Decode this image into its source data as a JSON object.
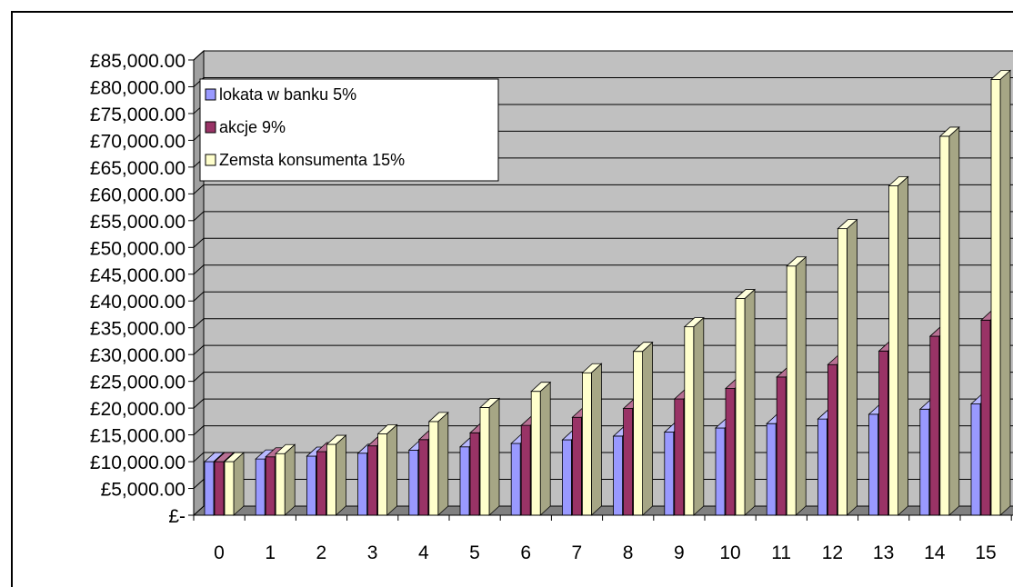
{
  "chart_data": {
    "type": "bar",
    "bar_style": "3d-column",
    "categories": [
      "0",
      "1",
      "2",
      "3",
      "4",
      "5",
      "6",
      "7",
      "8",
      "9",
      "10",
      "11",
      "12",
      "13",
      "14",
      "15"
    ],
    "series": [
      {
        "name": "lokata w banku 5%",
        "color": "#9999FF",
        "values": [
          10000,
          10500,
          11025,
          11576,
          12155,
          12763,
          13401,
          14071,
          14775,
          15513,
          16289,
          17103,
          17959,
          18856,
          19799,
          20789
        ]
      },
      {
        "name": "akcje 9%",
        "color": "#993366",
        "values": [
          10000,
          10900,
          11881,
          12950,
          14116,
          15386,
          16771,
          18280,
          19926,
          21719,
          23674,
          25804,
          28127,
          30658,
          33417,
          36425
        ]
      },
      {
        "name": "Zemsta konsumenta 15%",
        "color": "#FFFFCC",
        "values": [
          10000,
          11500,
          13225,
          15209,
          17490,
          20114,
          23131,
          26600,
          30590,
          35179,
          40456,
          46524,
          53503,
          61528,
          70757,
          81371
        ]
      }
    ],
    "y_ticks": [
      {
        "value": 0,
        "label": "£-"
      },
      {
        "value": 5000,
        "label": "£5,000.00"
      },
      {
        "value": 10000,
        "label": "£10,000.00"
      },
      {
        "value": 15000,
        "label": "£15,000.00"
      },
      {
        "value": 20000,
        "label": "£20,000.00"
      },
      {
        "value": 25000,
        "label": "£25,000.00"
      },
      {
        "value": 30000,
        "label": "£30,000.00"
      },
      {
        "value": 35000,
        "label": "£35,000.00"
      },
      {
        "value": 40000,
        "label": "£40,000.00"
      },
      {
        "value": 45000,
        "label": "£45,000.00"
      },
      {
        "value": 50000,
        "label": "£50,000.00"
      },
      {
        "value": 55000,
        "label": "£55,000.00"
      },
      {
        "value": 60000,
        "label": "£60,000.00"
      },
      {
        "value": 65000,
        "label": "£65,000.00"
      },
      {
        "value": 70000,
        "label": "£70,000.00"
      },
      {
        "value": 75000,
        "label": "£75,000.00"
      },
      {
        "value": 80000,
        "label": "£80,000.00"
      },
      {
        "value": 85000,
        "label": "£85,000.00"
      }
    ],
    "ylim": [
      0,
      85000
    ],
    "grid": true,
    "plot_background": "#C0C0C0",
    "legend_position": "top-left",
    "title": "",
    "xlabel": "",
    "ylabel": ""
  }
}
